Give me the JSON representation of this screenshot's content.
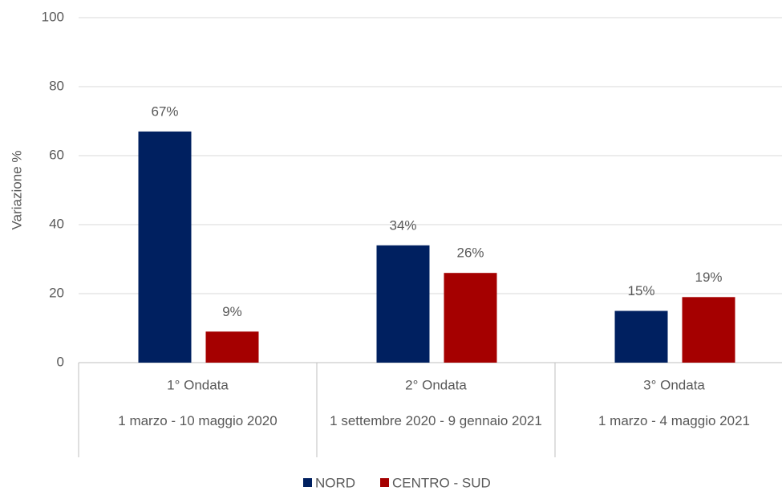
{
  "chart_data": {
    "type": "bar",
    "y_label": "Variazione %",
    "categories": [
      "1° Ondata",
      "2° Ondata",
      "3° Ondata"
    ],
    "subcategories": [
      "1 marzo - 10 maggio 2020",
      "1 settembre 2020 - 9 gennaio 2021",
      "1 marzo - 4 maggio 2021"
    ],
    "series": [
      {
        "name": "NORD",
        "color": "#002060",
        "values": [
          67,
          34,
          15
        ],
        "value_labels": [
          "67%",
          "34%",
          "15%"
        ]
      },
      {
        "name": "CENTRO - SUD",
        "color": "#a50000",
        "values": [
          9,
          26,
          19
        ],
        "value_labels": [
          "9%",
          "26%",
          "19%"
        ]
      }
    ],
    "ylim": [
      0,
      100
    ],
    "yticks": [
      0,
      20,
      40,
      60,
      80,
      100
    ],
    "grid": true,
    "legend": "bottom"
  }
}
